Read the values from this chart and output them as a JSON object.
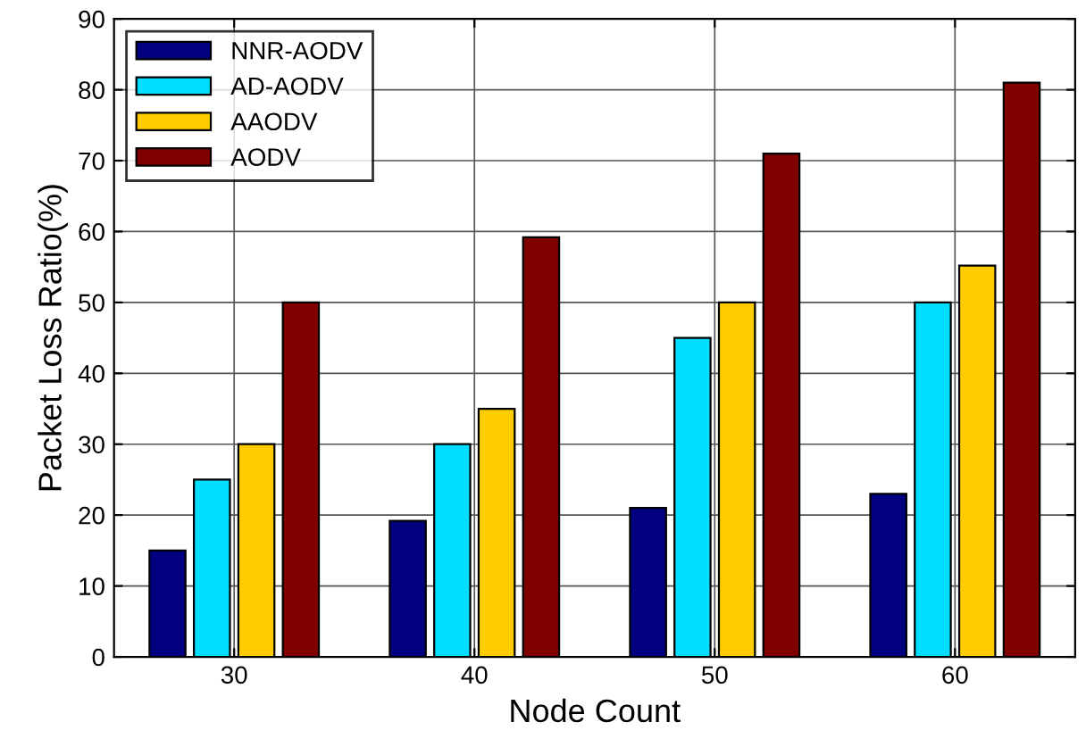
{
  "chart_data": {
    "type": "bar",
    "xlabel": "Node Count",
    "ylabel": "Packet Loss Ratio(%)",
    "categories": [
      "30",
      "40",
      "50",
      "60"
    ],
    "series": [
      {
        "name": "NNR-AODV",
        "color": "#000080",
        "values": [
          15,
          19.2,
          21,
          23
        ]
      },
      {
        "name": "AD-AODV",
        "color": "#00ddff",
        "values": [
          25,
          30,
          45,
          50
        ]
      },
      {
        "name": "AAODV",
        "color": "#ffcc00",
        "values": [
          30,
          35,
          50,
          55.2
        ]
      },
      {
        "name": "AODV",
        "color": "#800000",
        "values": [
          50,
          59.2,
          71,
          81
        ]
      }
    ],
    "ylim": [
      0,
      90
    ],
    "yticks": [
      0,
      10,
      20,
      30,
      40,
      50,
      60,
      70,
      80,
      90
    ],
    "grid": true,
    "legend": "top left"
  }
}
